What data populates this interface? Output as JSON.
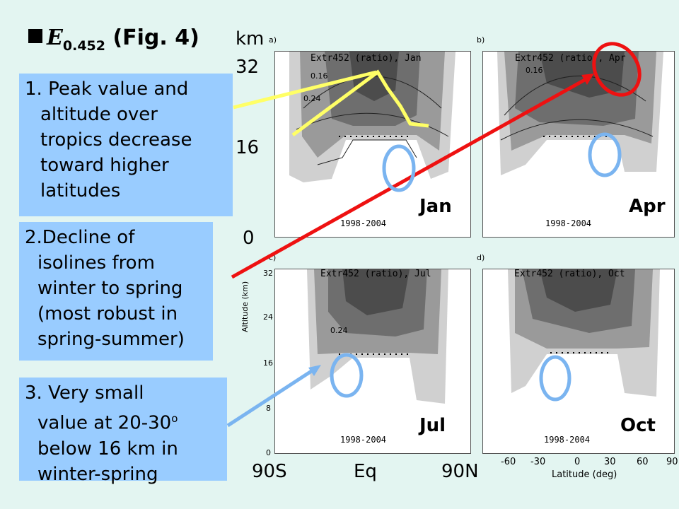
{
  "title": {
    "symbol": "E",
    "subscript": "0.452",
    "fig": "(Fig. 4)"
  },
  "boxes": {
    "b1": [
      "1. Peak value and",
      "altitude over",
      "tropics decrease",
      "toward higher",
      "latitudes"
    ],
    "b2": [
      "2.Decline of",
      "isolines from",
      "winter to spring",
      "(most robust in",
      "spring-summer)"
    ],
    "b3": [
      "3. Very small",
      "value at 20-30",
      "below 16 km in",
      "winter-spring"
    ],
    "b3_sup": "o"
  },
  "yaxis": {
    "unit": "km",
    "t32": "32",
    "t16": "16",
    "t0": "0"
  },
  "xaxis": {
    "left": "90S",
    "mid": "Eq",
    "right": "90N"
  },
  "panels": [
    {
      "label": "a)",
      "title": "Extr452 (ratio), Jan",
      "month": "Jan",
      "years": "1998-2004"
    },
    {
      "label": "b)",
      "title": "Extr452 (ratio), Apr",
      "month": "Apr",
      "years": "1998-2004"
    },
    {
      "label": "c)",
      "title": "Extr452 (ratio), Jul",
      "month": "Jul",
      "years": "1998-2004"
    },
    {
      "label": "d)",
      "title": "Extr452 (ratio), Oct",
      "month": "Oct",
      "years": "1998-2004"
    }
  ],
  "plot_axes": {
    "alt_label": "Altitude (km)",
    "alt_ticks": [
      "0",
      "8",
      "16",
      "24",
      "32"
    ],
    "lat_label": "Latitude (deg)",
    "lat_ticks": [
      "-60",
      "-30",
      "0",
      "30",
      "60",
      "90"
    ]
  },
  "contour_labels": [
    "0.16",
    "0.24",
    "0.16",
    "0.24"
  ],
  "colors": {
    "background": "#e3f5f1",
    "box": "#99ccff",
    "yellow": "#ffff66",
    "red": "#ee1111",
    "blue": "#7ab4f0"
  }
}
